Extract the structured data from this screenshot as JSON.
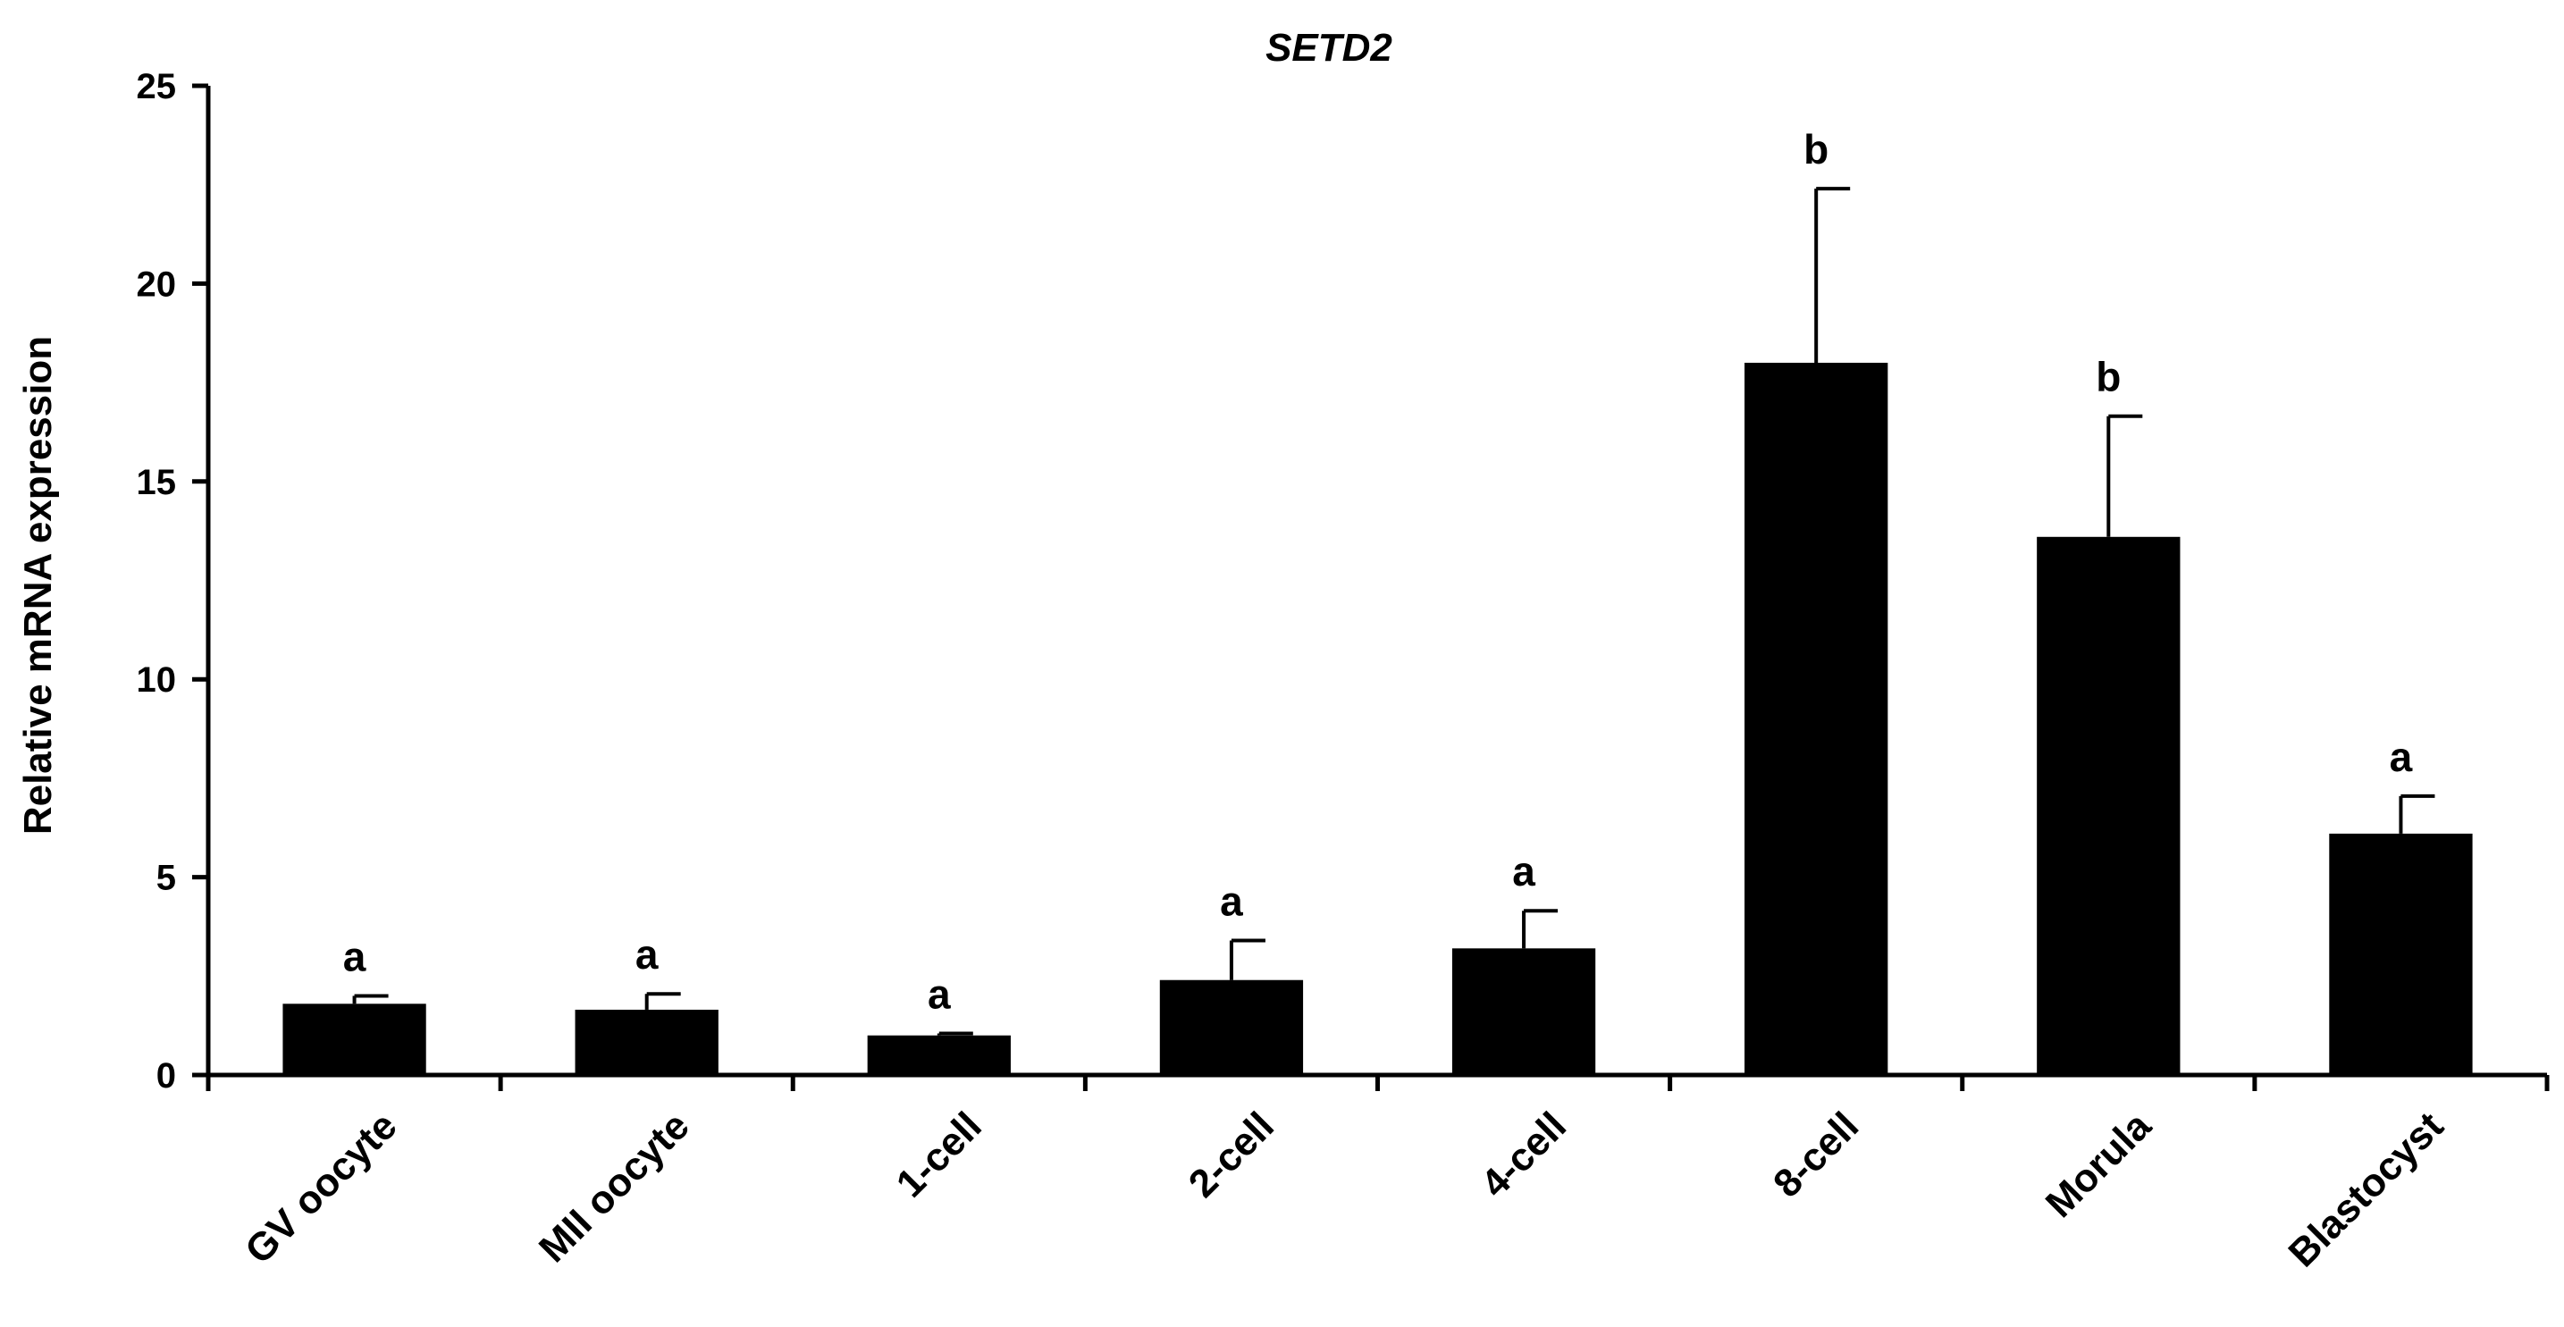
{
  "chart_data": {
    "type": "bar",
    "title": "SETD2",
    "xlabel": "",
    "ylabel": "Relative mRNA expression",
    "ylim": [
      0,
      25
    ],
    "yticks": [
      0,
      5,
      10,
      15,
      20,
      25
    ],
    "categories": [
      "GV oocyte",
      "MII oocyte",
      "1-cell",
      "2-cell",
      "4-cell",
      "8-cell",
      "Morula",
      "Blastocyst"
    ],
    "values": [
      1.8,
      1.65,
      1.0,
      2.4,
      3.2,
      18.0,
      13.6,
      6.1
    ],
    "error_upper": [
      2.0,
      2.05,
      1.05,
      3.4,
      4.15,
      22.4,
      16.65,
      7.05
    ],
    "significance": [
      "a",
      "a",
      "a",
      "a",
      "a",
      "b",
      "b",
      "a"
    ],
    "grid": false,
    "legend": "none",
    "colors": {
      "bar": "#000000",
      "axis": "#000000"
    }
  }
}
